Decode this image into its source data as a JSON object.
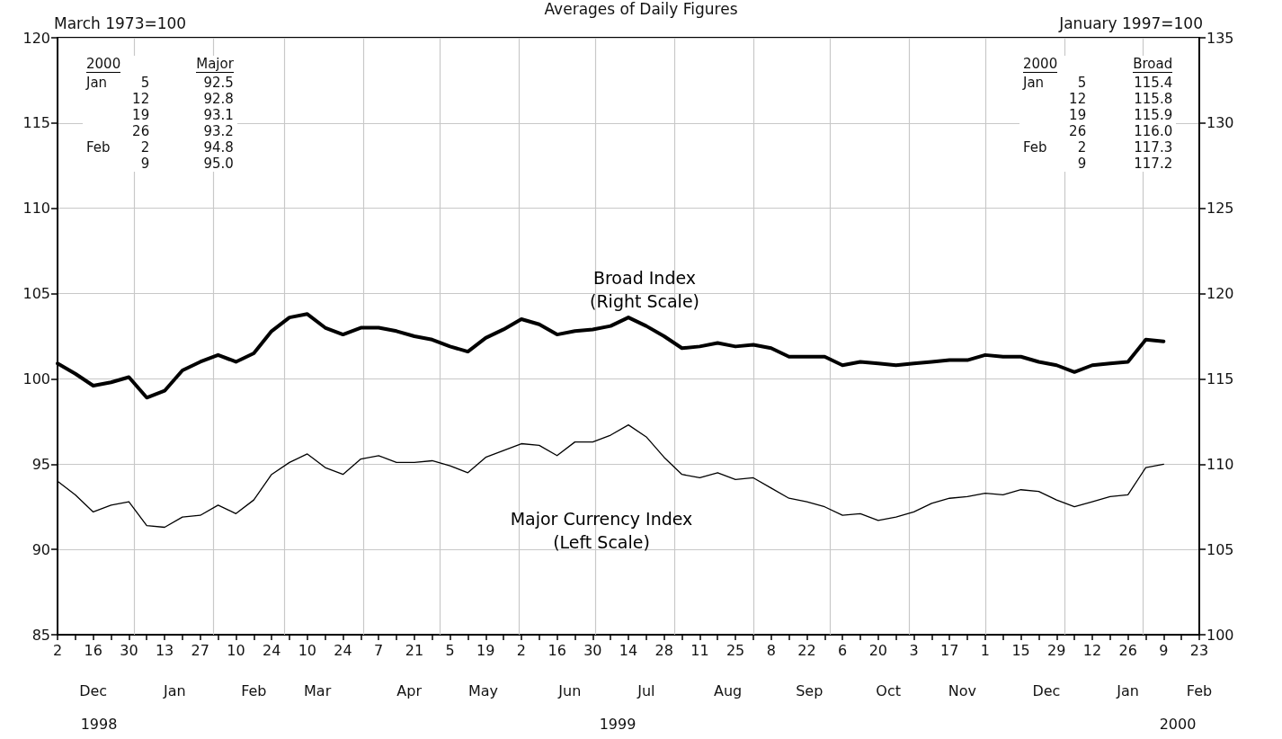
{
  "chart_data": {
    "type": "line",
    "title": "Averages of Daily Figures",
    "ylabel": "March 1973=100",
    "y2label": "January 1997=100",
    "x": [
      "1998-12-02",
      "1998-12-09",
      "1998-12-16",
      "1998-12-23",
      "1998-12-30",
      "1999-01-06",
      "1999-01-13",
      "1999-01-20",
      "1999-01-27",
      "1999-02-03",
      "1999-02-10",
      "1999-02-17",
      "1999-02-24",
      "1999-03-03",
      "1999-03-10",
      "1999-03-17",
      "1999-03-24",
      "1999-03-31",
      "1999-04-07",
      "1999-04-14",
      "1999-04-21",
      "1999-04-28",
      "1999-05-05",
      "1999-05-12",
      "1999-05-19",
      "1999-05-26",
      "1999-06-02",
      "1999-06-09",
      "1999-06-16",
      "1999-06-23",
      "1999-06-30",
      "1999-07-07",
      "1999-07-14",
      "1999-07-21",
      "1999-07-28",
      "1999-08-04",
      "1999-08-11",
      "1999-08-18",
      "1999-08-25",
      "1999-09-01",
      "1999-09-08",
      "1999-09-15",
      "1999-09-22",
      "1999-09-29",
      "1999-10-06",
      "1999-10-13",
      "1999-10-20",
      "1999-10-27",
      "1999-11-03",
      "1999-11-10",
      "1999-11-17",
      "1999-11-24",
      "1999-12-01",
      "1999-12-08",
      "1999-12-15",
      "1999-12-22",
      "1999-12-29",
      "2000-01-05",
      "2000-01-12",
      "2000-01-19",
      "2000-01-26",
      "2000-02-02",
      "2000-02-09"
    ],
    "series": [
      {
        "name": "Broad Index\n(Right Scale)",
        "color": "#000000",
        "axis": "y2",
        "values": [
          115.9,
          115.3,
          114.6,
          114.8,
          115.1,
          113.9,
          114.3,
          115.5,
          116.0,
          116.4,
          116.0,
          116.5,
          117.8,
          118.6,
          118.8,
          118.0,
          117.6,
          118.0,
          118.0,
          117.8,
          117.5,
          117.3,
          116.9,
          116.6,
          117.4,
          117.9,
          118.5,
          118.2,
          117.6,
          117.8,
          117.9,
          118.1,
          118.6,
          118.1,
          117.5,
          116.8,
          116.9,
          117.1,
          116.9,
          117.0,
          116.8,
          116.3,
          116.3,
          116.3,
          115.8,
          116.0,
          115.9,
          115.8,
          115.9,
          116.0,
          116.1,
          116.1,
          116.4,
          116.3,
          116.3,
          116.0,
          115.8,
          115.4,
          115.8,
          115.9,
          116.0,
          117.3,
          117.2
        ]
      },
      {
        "name": "Major Currency Index\n(Left Scale)",
        "color": "#000000",
        "values": [
          94.0,
          93.2,
          92.2,
          92.6,
          92.8,
          91.4,
          91.3,
          91.9,
          92.0,
          92.6,
          92.1,
          92.9,
          94.4,
          95.1,
          95.6,
          94.8,
          94.4,
          95.3,
          95.5,
          95.1,
          95.1,
          95.2,
          94.9,
          94.5,
          95.4,
          95.8,
          96.2,
          96.1,
          95.5,
          96.3,
          96.3,
          96.7,
          97.3,
          96.6,
          95.4,
          94.4,
          94.2,
          94.5,
          94.1,
          94.2,
          93.6,
          93.0,
          92.8,
          92.5,
          92.0,
          92.1,
          91.7,
          91.9,
          92.2,
          92.7,
          93.0,
          93.1,
          93.3,
          93.2,
          93.5,
          93.4,
          92.9,
          92.5,
          92.8,
          93.1,
          93.2,
          94.8,
          95.0
        ]
      }
    ],
    "xlim": [
      "1998-12-02",
      "2000-02-23"
    ],
    "x2lim": [
      "1998-12-02",
      "2000-02-23"
    ],
    "x2ticks": [
      {
        "value": "1998-12-16",
        "label": "Dec"
      },
      {
        "value": "1999-01-17",
        "label": "Jan"
      },
      {
        "value": "1999-02-17",
        "label": "Feb"
      },
      {
        "value": "1999-03-14",
        "label": "Mar"
      },
      {
        "value": "1999-04-19",
        "label": "Apr"
      },
      {
        "value": "1999-05-18",
        "label": "May"
      },
      {
        "value": "1999-06-21",
        "label": "Jun"
      },
      {
        "value": "1999-07-21",
        "label": "Jul"
      },
      {
        "value": "1999-08-22",
        "label": "Aug"
      },
      {
        "value": "1999-09-23",
        "label": "Sep"
      },
      {
        "value": "1999-10-24",
        "label": "Oct"
      },
      {
        "value": "1999-11-22",
        "label": "Nov"
      },
      {
        "value": "1999-12-25",
        "label": "Dec"
      },
      {
        "value": "2000-01-26",
        "label": "Jan"
      },
      {
        "value": "2000-02-23",
        "label": "Feb"
      }
    ],
    "xticks": [
      {
        "value": "1998-12-02",
        "label": "2"
      },
      {
        "value": "1998-12-09",
        "label": null
      },
      {
        "value": "1998-12-16",
        "label": "16"
      },
      {
        "value": "1998-12-23",
        "label": null
      },
      {
        "value": "1998-12-30",
        "label": "30"
      },
      {
        "value": "1999-01-06",
        "label": null
      },
      {
        "value": "1999-01-13",
        "label": "13"
      },
      {
        "value": "1999-01-20",
        "label": null
      },
      {
        "value": "1999-01-27",
        "label": "27"
      },
      {
        "value": "1999-02-03",
        "label": null
      },
      {
        "value": "1999-02-10",
        "label": "10"
      },
      {
        "value": "1999-02-17",
        "label": null
      },
      {
        "value": "1999-02-24",
        "label": "24"
      },
      {
        "value": "1999-03-03",
        "label": null
      },
      {
        "value": "1999-03-10",
        "label": "10"
      },
      {
        "value": "1999-03-17",
        "label": null
      },
      {
        "value": "1999-03-24",
        "label": "24"
      },
      {
        "value": "1999-03-31",
        "label": null
      },
      {
        "value": "1999-04-07",
        "label": "7"
      },
      {
        "value": "1999-04-14",
        "label": null
      },
      {
        "value": "1999-04-21",
        "label": "21"
      },
      {
        "value": "1999-04-28",
        "label": null
      },
      {
        "value": "1999-05-05",
        "label": "5"
      },
      {
        "value": "1999-05-12",
        "label": null
      },
      {
        "value": "1999-05-19",
        "label": "19"
      },
      {
        "value": "1999-05-26",
        "label": null
      },
      {
        "value": "1999-06-02",
        "label": "2"
      },
      {
        "value": "1999-06-09",
        "label": null
      },
      {
        "value": "1999-06-16",
        "label": "16"
      },
      {
        "value": "1999-06-23",
        "label": null
      },
      {
        "value": "1999-06-30",
        "label": "30"
      },
      {
        "value": "1999-07-07",
        "label": null
      },
      {
        "value": "1999-07-14",
        "label": "14"
      },
      {
        "value": "1999-07-21",
        "label": null
      },
      {
        "value": "1999-07-28",
        "label": "28"
      },
      {
        "value": "1999-08-04",
        "label": null
      },
      {
        "value": "1999-08-11",
        "label": "11"
      },
      {
        "value": "1999-08-18",
        "label": null
      },
      {
        "value": "1999-08-25",
        "label": "25"
      },
      {
        "value": "1999-09-01",
        "label": null
      },
      {
        "value": "1999-09-08",
        "label": "8"
      },
      {
        "value": "1999-09-15",
        "label": null
      },
      {
        "value": "1999-09-22",
        "label": "22"
      },
      {
        "value": "1999-09-29",
        "label": null
      },
      {
        "value": "1999-10-06",
        "label": "6"
      },
      {
        "value": "1999-10-13",
        "label": null
      },
      {
        "value": "1999-10-20",
        "label": "20"
      },
      {
        "value": "1999-10-27",
        "label": null
      },
      {
        "value": "1999-11-03",
        "label": "3"
      },
      {
        "value": "1999-11-10",
        "label": null
      },
      {
        "value": "1999-11-17",
        "label": "17"
      },
      {
        "value": "1999-11-24",
        "label": null
      },
      {
        "value": "1999-12-01",
        "label": "1"
      },
      {
        "value": "1999-12-08",
        "label": null
      },
      {
        "value": "1999-12-15",
        "label": "15"
      },
      {
        "value": "1999-12-22",
        "label": null
      },
      {
        "value": "1999-12-29",
        "label": "29"
      },
      {
        "value": "2000-01-05",
        "label": null
      },
      {
        "value": "2000-01-12",
        "label": "12"
      },
      {
        "value": "2000-01-19",
        "label": null
      },
      {
        "value": "2000-01-26",
        "label": "26"
      },
      {
        "value": "2000-02-02",
        "label": null
      },
      {
        "value": "2000-02-09",
        "label": "9"
      },
      {
        "value": "2000-02-16",
        "label": null
      },
      {
        "value": "2000-02-23",
        "label": "23"
      }
    ],
    "ylim": [
      85,
      120
    ],
    "yticks": [
      85,
      90,
      95,
      100,
      105,
      110,
      115,
      120
    ],
    "y2lim": [
      100,
      135
    ],
    "y2ticks": [
      100,
      105,
      110,
      115,
      120,
      125,
      130,
      135
    ],
    "ref_lines": [
      {
        "axis": "x",
        "value": "1999-01-01",
        "color": "#c8c8c8"
      },
      {
        "axis": "x",
        "value": "1999-02-01",
        "color": "#c8c8c8"
      },
      {
        "axis": "x",
        "value": "1999-03-01",
        "color": "#c8c8c8"
      },
      {
        "axis": "x",
        "value": "1999-04-01",
        "color": "#c8c8c8"
      },
      {
        "axis": "x",
        "value": "1999-05-01",
        "color": "#c8c8c8"
      },
      {
        "axis": "x",
        "value": "1999-06-01",
        "color": "#c8c8c8"
      },
      {
        "axis": "x",
        "value": "1999-07-01",
        "color": "#c8c8c8"
      },
      {
        "axis": "x",
        "value": "1999-08-01",
        "color": "#c8c8c8"
      },
      {
        "axis": "x",
        "value": "1999-09-01",
        "color": "#c8c8c8"
      },
      {
        "axis": "x",
        "value": "1999-10-01",
        "color": "#c8c8c8"
      },
      {
        "axis": "x",
        "value": "1999-11-01",
        "color": "#c8c8c8"
      },
      {
        "axis": "x",
        "value": "1999-12-01",
        "color": "#c8c8c8"
      },
      {
        "axis": "x",
        "value": "2000-01-01",
        "color": "#c8c8c8"
      },
      {
        "axis": "x",
        "value": "2000-02-01",
        "color": "#c8c8c8"
      }
    ],
    "annotations": [
      "2000\t\tMajor\nJan\t5\t92.5\n\t12\t92.8\n\t19\t93.1\n\t26\t93.2\nFeb\t2\t94.8\n\t9\t95.0",
      "2000\t\tBroad\nJan\t5\t115.4\n\t12\t115.8\n\t19\t115.9\n\t26\t116.0\nFeb\t2\t117.3\n\t9\t117.2",
      "1998",
      "1999",
      "2000"
    ],
    "grid": "y",
    "marker": "none",
    "line_style": "solid"
  }
}
